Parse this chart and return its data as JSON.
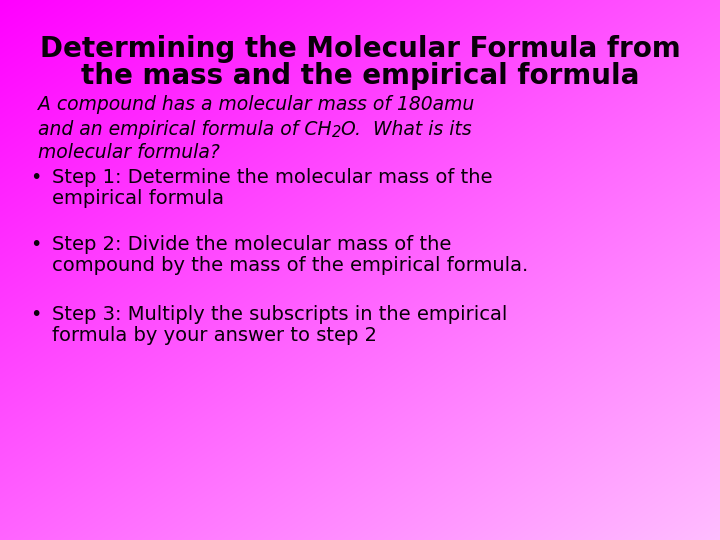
{
  "title_line1": "Determining the Molecular Formula from",
  "title_line2": "the mass and the empirical formula",
  "title_fontsize": 20,
  "italic_line1": "A compound has a molecular mass of 180amu",
  "italic_line2_part1": "and an empirical formula of CH",
  "italic_line2_sub": "2",
  "italic_line2_part2": "O.  What is its",
  "italic_line3": "molecular formula?",
  "italic_fontsize": 13.5,
  "bullet1_line1": "Step 1: Determine the molecular mass of the",
  "bullet1_line2": "empirical formula",
  "bullet2_line1": "Step 2: Divide the molecular mass of the",
  "bullet2_line2": "compound by the mass of the empirical formula.",
  "bullet3_line1": "Step 3: Multiply the subscripts in the empirical",
  "bullet3_line2": "formula by your answer to step 2",
  "bullet_fontsize": 14,
  "bg_left": "#ff00ff",
  "bg_right": "#ffb3ff",
  "text_color": "#0a000a"
}
